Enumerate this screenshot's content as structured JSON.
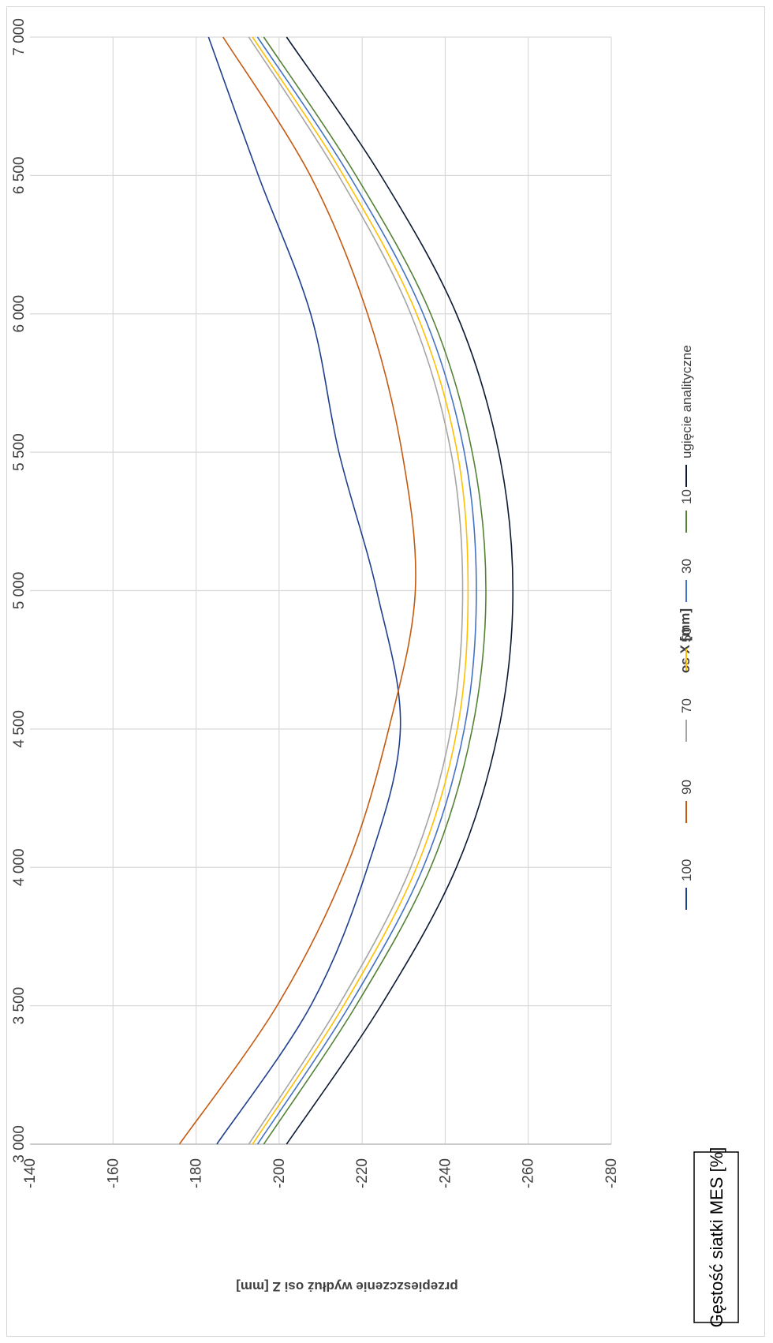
{
  "chart_data": {
    "type": "line",
    "x_axis_title": "os X [mm]",
    "y_axis_title": "przepieszczenie wydłuż  osi Z [mm]",
    "legend_title": "Gęstość siatki MES  [%]",
    "xlim": [
      3000,
      7000
    ],
    "ylim": [
      -280,
      -140
    ],
    "x_ticks": [
      "3 000",
      "3 500",
      "4 000",
      "4 500",
      "5 000",
      "5 500",
      "6 000",
      "6 500",
      "7 000"
    ],
    "y_ticks": [
      "-140",
      "-160",
      "-180",
      "-200",
      "-220",
      "-240",
      "-260",
      "-280"
    ],
    "x_tick_values": [
      3000,
      3500,
      4000,
      4500,
      5000,
      5500,
      6000,
      6500,
      7000
    ],
    "y_tick_values": [
      -140,
      -160,
      -180,
      -200,
      -220,
      -240,
      -260,
      -280
    ],
    "grid": true,
    "legend_position": "bottom",
    "series": [
      {
        "name": "100",
        "color": "#1f3f8f",
        "x": [
          3000,
          3500,
          4000,
          4500,
          5000,
          5500,
          6000,
          6500,
          7000
        ],
        "y": [
          -185,
          -207.6,
          -221.3,
          -229.2,
          -223.5,
          -214.4,
          -207.6,
          -195,
          -183
        ]
      },
      {
        "name": "90",
        "color": "#c55a11",
        "x": [
          3000,
          3500,
          4000,
          4500,
          5000,
          5500,
          6000,
          6500,
          7000
        ],
        "y": [
          -176,
          -199.5,
          -216.2,
          -226.4,
          -232.8,
          -229.6,
          -221.3,
          -207.5,
          -186.5
        ]
      },
      {
        "name": "70",
        "color": "#a5a5a5",
        "x": [
          3000,
          3500,
          4000,
          4500,
          5000,
          5500,
          6000,
          6500,
          7000
        ],
        "y": [
          -192.7,
          -214.3,
          -231.7,
          -241.4,
          -244.2,
          -241.4,
          -231.7,
          -214.3,
          -192.7
        ]
      },
      {
        "name": "50",
        "color": "#ffc000",
        "x": [
          3000,
          3500,
          4000,
          4500,
          5000,
          5500,
          6000,
          6500,
          7000
        ],
        "y": [
          -193.6,
          -215.5,
          -233.1,
          -242.9,
          -245.5,
          -242.9,
          -233.1,
          -215.5,
          -193.6
        ]
      },
      {
        "name": "30",
        "color": "#4472c4",
        "x": [
          3000,
          3500,
          4000,
          4500,
          5000,
          5500,
          6000,
          6500,
          7000
        ],
        "y": [
          -194.8,
          -216.9,
          -234.7,
          -244.6,
          -247.5,
          -244.6,
          -234.7,
          -216.9,
          -194.8
        ]
      },
      {
        "name": "10",
        "color": "#548235",
        "x": [
          3000,
          3500,
          4000,
          4500,
          5000,
          5500,
          6000,
          6500,
          7000
        ],
        "y": [
          -196.3,
          -218.5,
          -236.5,
          -246.5,
          -249.8,
          -246.5,
          -236.5,
          -218.5,
          -196.3
        ]
      },
      {
        "name": "ugięcie analityczne",
        "color": "#0b1a33",
        "x": [
          3000,
          3500,
          4000,
          4500,
          5000,
          5500,
          6000,
          6500,
          7000
        ],
        "y": [
          -201.8,
          -224.5,
          -242.7,
          -252.9,
          -256.3,
          -252.9,
          -242.7,
          -224.5,
          -201.8
        ]
      }
    ]
  }
}
